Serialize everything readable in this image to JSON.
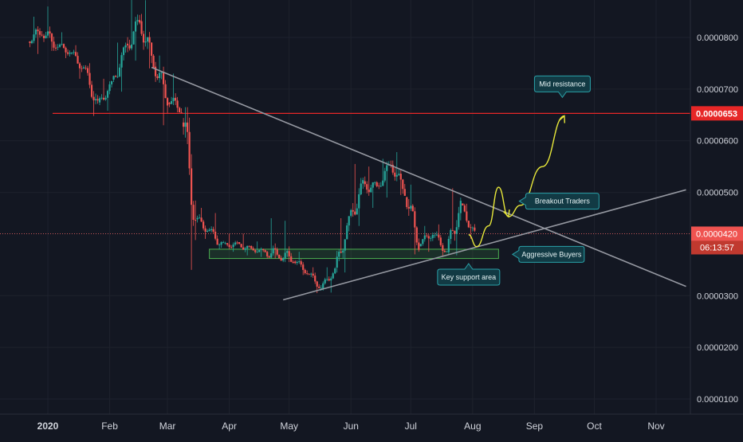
{
  "chart_data": {
    "type": "candlestick",
    "x_ticks": [
      "2020",
      "Feb",
      "Mar",
      "Apr",
      "May",
      "Jun",
      "Jul",
      "Aug",
      "Sep",
      "Oct",
      "Nov"
    ],
    "y_ticks": [
      "0.0000800",
      "0.0000700",
      "0.0000600",
      "0.0000500",
      "0.0000300",
      "0.0000200",
      "0.0000100"
    ],
    "ylim": [
      6e-06,
      8.75e-05
    ],
    "grid": true,
    "colors": {
      "up": "#26a69a",
      "down": "#ef5350",
      "background": "#131722",
      "resistance": "#e62727",
      "projection": "#e8e83a",
      "trendline": "#9598a1",
      "label_bg": "#123a44",
      "label_border": "#2aa1a8"
    },
    "price_markers": [
      {
        "value_label": "0.0000653",
        "value": 6.53e-05,
        "style": "resistance"
      },
      {
        "value_label": "0.0000420",
        "value": 4.2e-05,
        "style": "current",
        "countdown": "06:13:57"
      }
    ],
    "key_support_zone": {
      "from": "Mar 22",
      "to": "Aug 14",
      "low": 3.72e-05,
      "high": 3.9e-05
    },
    "trendlines": [
      {
        "name": "descending-resistance",
        "from": [
          "Feb 22",
          7.42e-05
        ],
        "to": [
          "Nov 16",
          3.18e-05
        ]
      },
      {
        "name": "ascending-support",
        "from": [
          "Apr 28",
          2.92e-05
        ],
        "to": [
          "Nov 16",
          5.05e-05
        ]
      }
    ],
    "projection": [
      [
        "Jul 30",
        4.18e-05
      ],
      [
        "Aug 3",
        3.95e-05
      ],
      [
        "Aug 9",
        4.35e-05
      ],
      [
        "Aug 14",
        5.1e-05
      ],
      [
        "Aug 19",
        4.53e-05
      ],
      [
        "Aug 25",
        4.75e-05
      ],
      [
        "Sep 5",
        5.5e-05
      ],
      [
        "Sep 16",
        6.48e-05
      ]
    ],
    "annotations": [
      {
        "text": "Mid resistance",
        "anchor": [
          "Sep 15",
          6.7e-05
        ]
      },
      {
        "text": "Breakout Traders",
        "anchor": [
          "Aug 22",
          4.83e-05
        ]
      },
      {
        "text": "Aggressive Buyers",
        "anchor": [
          "Aug 17",
          3.8e-05
        ]
      },
      {
        "text": "Key support area",
        "anchor": [
          "Jul 30",
          3.76e-05
        ]
      }
    ],
    "ohlc_weekly": [
      {
        "week_of": "Dec 23",
        "open": 7.95e-05,
        "high": 8.4e-05,
        "low": 7.68e-05,
        "close": 8.1e-05
      },
      {
        "week_of": "Dec 30",
        "open": 8.1e-05,
        "high": 8.6e-05,
        "low": 7.74e-05,
        "close": 7.85e-05
      },
      {
        "week_of": "Jan 6",
        "open": 7.85e-05,
        "high": 8.1e-05,
        "low": 7.6e-05,
        "close": 7.72e-05
      },
      {
        "week_of": "Jan 13",
        "open": 7.72e-05,
        "high": 7.85e-05,
        "low": 7.2e-05,
        "close": 7.4e-05
      },
      {
        "week_of": "Jan 20",
        "open": 7.4e-05,
        "high": 7.5e-05,
        "low": 6.48e-05,
        "close": 6.7e-05
      },
      {
        "week_of": "Jan 27",
        "open": 6.7e-05,
        "high": 7.2e-05,
        "low": 6.58e-05,
        "close": 7.1e-05
      },
      {
        "week_of": "Feb 3",
        "open": 7.1e-05,
        "high": 7.9e-05,
        "low": 6.95e-05,
        "close": 7.8e-05
      },
      {
        "week_of": "Feb 10",
        "open": 7.8e-05,
        "high": 8.75e-05,
        "low": 7.55e-05,
        "close": 8.3e-05
      },
      {
        "week_of": "Feb 17",
        "open": 8.3e-05,
        "high": 8.72e-05,
        "low": 7.4e-05,
        "close": 7.5e-05
      },
      {
        "week_of": "Feb 24",
        "open": 7.5e-05,
        "high": 7.65e-05,
        "low": 6.3e-05,
        "close": 6.8e-05
      },
      {
        "week_of": "Mar 2",
        "open": 6.8e-05,
        "high": 7.3e-05,
        "low": 6.55e-05,
        "close": 6.6e-05
      },
      {
        "week_of": "Mar 9",
        "open": 6.6e-05,
        "high": 6.65e-05,
        "low": 3.5e-05,
        "close": 4.5e-05
      },
      {
        "week_of": "Mar 16",
        "open": 4.5e-05,
        "high": 4.7e-05,
        "low": 4.1e-05,
        "close": 4.25e-05
      },
      {
        "week_of": "Mar 23",
        "open": 4.25e-05,
        "high": 4.6e-05,
        "low": 3.9e-05,
        "close": 3.98e-05
      },
      {
        "week_of": "Mar 30",
        "open": 3.98e-05,
        "high": 4.2e-05,
        "low": 3.85e-05,
        "close": 4e-05
      },
      {
        "week_of": "Apr 6",
        "open": 4e-05,
        "high": 4.2e-05,
        "low": 3.78e-05,
        "close": 3.9e-05
      },
      {
        "week_of": "Apr 13",
        "open": 3.9e-05,
        "high": 4.05e-05,
        "low": 3.75e-05,
        "close": 3.85e-05
      },
      {
        "week_of": "Apr 20",
        "open": 3.85e-05,
        "high": 4.5e-05,
        "low": 3.72e-05,
        "close": 3.78e-05
      },
      {
        "week_of": "Apr 27",
        "open": 3.78e-05,
        "high": 4.45e-05,
        "low": 3.65e-05,
        "close": 3.7e-05
      },
      {
        "week_of": "May 4",
        "open": 3.7e-05,
        "high": 3.85e-05,
        "low": 3.4e-05,
        "close": 3.45e-05
      },
      {
        "week_of": "May 11",
        "open": 3.45e-05,
        "high": 3.55e-05,
        "low": 3.05e-05,
        "close": 3.15e-05
      },
      {
        "week_of": "May 18",
        "open": 3.15e-05,
        "high": 3.55e-05,
        "low": 3.06e-05,
        "close": 3.5e-05
      },
      {
        "week_of": "May 25",
        "open": 3.5e-05,
        "high": 4.5e-05,
        "low": 3.45e-05,
        "close": 4.45e-05
      },
      {
        "week_of": "Jun 1",
        "open": 4.45e-05,
        "high": 5.55e-05,
        "low": 4.35e-05,
        "close": 5.15e-05
      },
      {
        "week_of": "Jun 8",
        "open": 5.15e-05,
        "high": 5.5e-05,
        "low": 4.7e-05,
        "close": 5.1e-05
      },
      {
        "week_of": "Jun 15",
        "open": 5.1e-05,
        "high": 5.65e-05,
        "low": 4.9e-05,
        "close": 5.55e-05
      },
      {
        "week_of": "Jun 22",
        "open": 5.55e-05,
        "high": 5.78e-05,
        "low": 4.95e-05,
        "close": 5e-05
      },
      {
        "week_of": "Jun 29",
        "open": 5e-05,
        "high": 5.15e-05,
        "low": 3.8e-05,
        "close": 4e-05
      },
      {
        "week_of": "Jul 6",
        "open": 4e-05,
        "high": 4.35e-05,
        "low": 3.85e-05,
        "close": 4.2e-05
      },
      {
        "week_of": "Jul 13",
        "open": 4.2e-05,
        "high": 4.38e-05,
        "low": 3.75e-05,
        "close": 3.85e-05
      },
      {
        "week_of": "Jul 20",
        "open": 3.85e-05,
        "high": 5.08e-05,
        "low": 3.78e-05,
        "close": 4.75e-05
      },
      {
        "week_of": "Jul 27",
        "open": 4.75e-05,
        "high": 4.78e-05,
        "low": 4.1e-05,
        "close": 4.2e-05
      }
    ]
  }
}
